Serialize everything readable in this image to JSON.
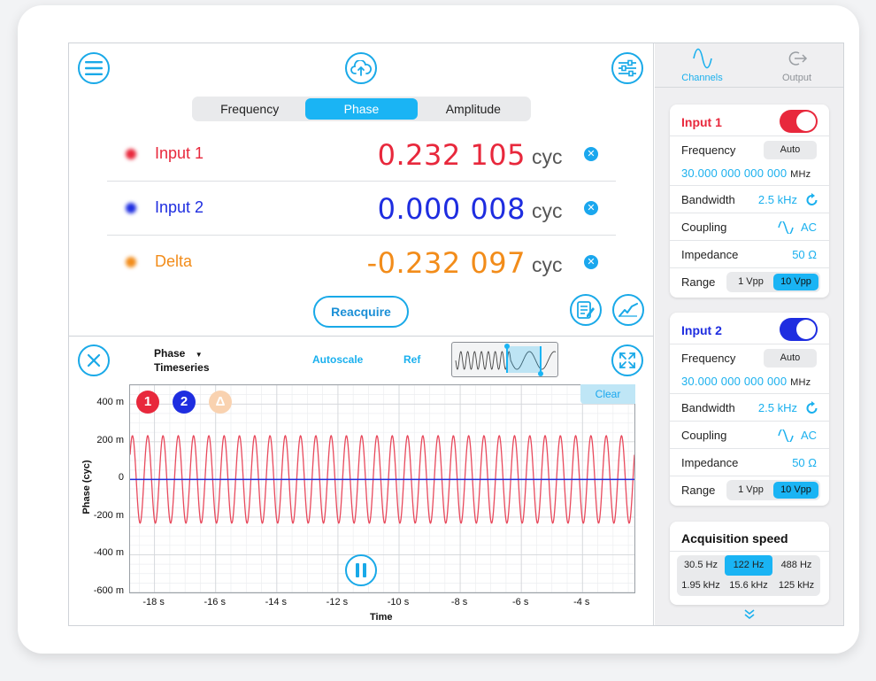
{
  "toolbar": {
    "menu_icon": "hamburger-menu-icon",
    "upload_icon": "cloud-upload-icon",
    "settings_icon": "sliders-icon"
  },
  "tabs": [
    {
      "label": "Frequency",
      "active": false
    },
    {
      "label": "Phase",
      "active": true
    },
    {
      "label": "Amplitude",
      "active": false
    }
  ],
  "measurements": [
    {
      "name": "Input 1",
      "value": "0.232 105",
      "unit": "cyc",
      "color": "#e8283c"
    },
    {
      "name": "Input 2",
      "value": "0.000 008",
      "unit": "cyc",
      "color": "#1e2de0"
    },
    {
      "name": "Delta",
      "value": "-0.232 097",
      "unit": "cyc",
      "color": "#f28c1a"
    }
  ],
  "reacquire_label": "Reacquire",
  "timeseries": {
    "selector_line1": "Phase",
    "selector_line2": "Timeseries",
    "autoscale_label": "Autoscale",
    "ref_label": "Ref",
    "clear_label": "Clear",
    "badges": [
      "1",
      "2",
      "Δ"
    ]
  },
  "chart_data": {
    "type": "line",
    "xlabel": "Time",
    "ylabel": "Phase (cyc)",
    "x_ticks": [
      "-18 s",
      "-16 s",
      "-14 s",
      "-12 s",
      "-10 s",
      "-8 s",
      "-6 s",
      "-4 s"
    ],
    "y_ticks": [
      "400 m",
      "200 m",
      "0",
      "-200 m",
      "-400 m",
      "-600 m"
    ],
    "xlim": [
      -18.8,
      -2.3
    ],
    "ylim": [
      -600,
      500
    ],
    "series": [
      {
        "name": "1",
        "color": "#e8495c",
        "kind": "sine",
        "amplitude": 232,
        "offset": 0,
        "cycles": 33
      },
      {
        "name": "2",
        "color": "#1e2de0",
        "kind": "constant",
        "value": 0
      }
    ],
    "grid": true
  },
  "right_panel": {
    "tabs": [
      {
        "label": "Channels",
        "active": true
      },
      {
        "label": "Output",
        "active": false
      }
    ],
    "channels": [
      {
        "title": "Input 1",
        "color": "#e8283c",
        "enabled": true,
        "frequency_label": "Frequency",
        "frequency_btn": "Auto",
        "frequency_value": "30.000 000 000 000",
        "frequency_unit": "MHz",
        "bandwidth_label": "Bandwidth",
        "bandwidth_value": "2.5 kHz",
        "coupling_label": "Coupling",
        "coupling_value": "AC",
        "impedance_label": "Impedance",
        "impedance_value": "50 Ω",
        "range_label": "Range",
        "range_options": [
          "1 Vpp",
          "10 Vpp"
        ],
        "range_selected": 1
      },
      {
        "title": "Input 2",
        "color": "#1e2de0",
        "enabled": true,
        "frequency_label": "Frequency",
        "frequency_btn": "Auto",
        "frequency_value": "30.000 000 000 000",
        "frequency_unit": "MHz",
        "bandwidth_label": "Bandwidth",
        "bandwidth_value": "2.5 kHz",
        "coupling_label": "Coupling",
        "coupling_value": "AC",
        "impedance_label": "Impedance",
        "impedance_value": "50 Ω",
        "range_label": "Range",
        "range_options": [
          "1 Vpp",
          "10 Vpp"
        ],
        "range_selected": 1
      }
    ],
    "acquisition": {
      "title": "Acquisition speed",
      "options": [
        "30.5 Hz",
        "122 Hz",
        "488 Hz",
        "1.95 kHz",
        "15.6 kHz",
        "125 kHz"
      ],
      "selected": 1
    }
  }
}
